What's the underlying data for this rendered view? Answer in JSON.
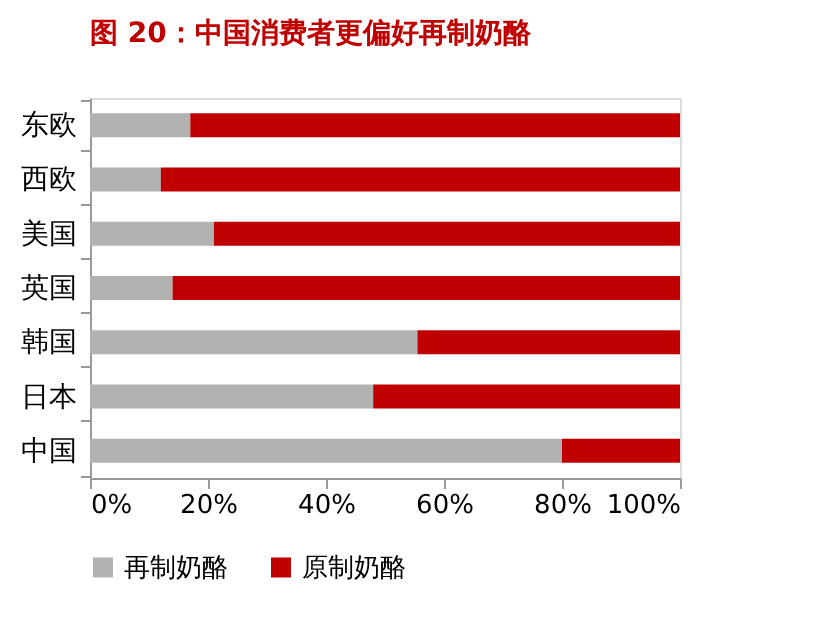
{
  "chart_data": {
    "type": "bar",
    "orientation": "horizontal",
    "stacked": true,
    "title": "图 20：中国消费者更偏好再制奶酪",
    "categories": [
      "东欧",
      "西欧",
      "美国",
      "英国",
      "韩国",
      "日本",
      "中国"
    ],
    "series": [
      {
        "name": "再制奶酪",
        "color": "#b2b2b2",
        "values": [
          17,
          12,
          21,
          14,
          55.5,
          48,
          80
        ]
      },
      {
        "name": "原制奶酪",
        "color": "#c00000",
        "values": [
          83,
          88,
          79,
          86,
          44.5,
          52,
          20
        ]
      }
    ],
    "xlim": [
      0,
      100
    ],
    "xticks": [
      {
        "value": 0,
        "label": "0%"
      },
      {
        "value": 20,
        "label": "20%"
      },
      {
        "value": 40,
        "label": "40%"
      },
      {
        "value": 60,
        "label": "60%"
      },
      {
        "value": 80,
        "label": "80%"
      },
      {
        "value": 100,
        "label": "100%"
      }
    ],
    "grid": false,
    "legend": "bottom"
  }
}
